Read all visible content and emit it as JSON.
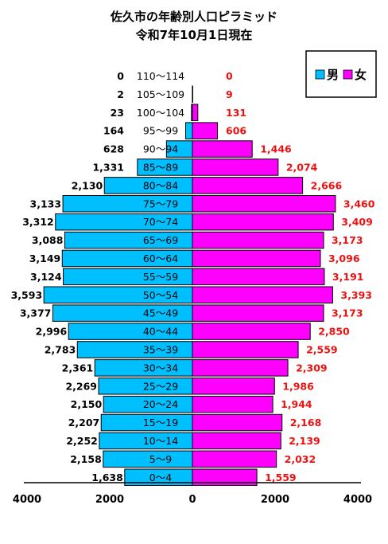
{
  "chart_data": {
    "type": "bar",
    "orientation": "horizontal-population-pyramid",
    "title": "佐久市の年齢別人口ピラミッド",
    "subtitle": "令和7年10月1日現在",
    "categories": [
      "110～114",
      "105～109",
      "100～104",
      "95～99",
      "90～94",
      "85～89",
      "80～84",
      "75～79",
      "70～74",
      "65～69",
      "60～64",
      "55～59",
      "50～54",
      "45～49",
      "40～44",
      "35～39",
      "30～34",
      "25～29",
      "20～24",
      "15～19",
      "10～14",
      "5～9",
      "0～4"
    ],
    "series": [
      {
        "name": "男",
        "color": "#00bfff",
        "side": "left",
        "values": [
          0,
          2,
          23,
          164,
          628,
          1331,
          2130,
          3133,
          3312,
          3088,
          3149,
          3124,
          3593,
          3377,
          2996,
          2783,
          2361,
          2269,
          2150,
          2207,
          2252,
          2158,
          1638
        ],
        "labels": [
          "0",
          "2",
          "23",
          "164",
          "628",
          "1,331",
          "2,130",
          "3,133",
          "3,312",
          "3,088",
          "3,149",
          "3,124",
          "3,593",
          "3,377",
          "2,996",
          "2,783",
          "2,361",
          "2,269",
          "2,150",
          "2,207",
          "2,252",
          "2,158",
          "1,638"
        ]
      },
      {
        "name": "女",
        "color": "#ff00ff",
        "side": "right",
        "values": [
          0,
          9,
          131,
          606,
          1446,
          2074,
          2666,
          3460,
          3409,
          3173,
          3096,
          3191,
          3393,
          3173,
          2850,
          2559,
          2309,
          1986,
          1944,
          2168,
          2139,
          2032,
          1559
        ],
        "labels": [
          "0",
          "9",
          "131",
          "606",
          "1,446",
          "2,074",
          "2,666",
          "3,460",
          "3,409",
          "3,173",
          "3,096",
          "3,191",
          "3,393",
          "3,173",
          "2,850",
          "2,559",
          "2,309",
          "1,986",
          "1,944",
          "2,168",
          "2,139",
          "2,032",
          "1,559"
        ]
      }
    ],
    "xlim": [
      -4000,
      4000
    ],
    "xticks": [
      "4000",
      "2000",
      "0",
      "2000",
      "4000"
    ],
    "xtick_values": [
      -4000,
      -2000,
      0,
      2000,
      4000
    ],
    "legend": {
      "position": "top-right",
      "entries": [
        "男",
        "女"
      ]
    },
    "grid": false
  }
}
